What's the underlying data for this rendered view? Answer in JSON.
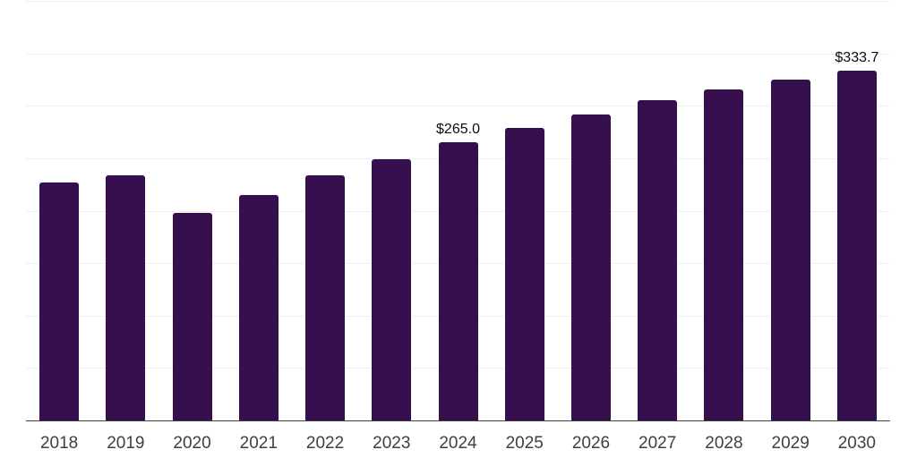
{
  "chart_data": {
    "type": "bar",
    "title": "",
    "xlabel": "",
    "ylabel": "",
    "categories": [
      "2018",
      "2019",
      "2020",
      "2021",
      "2022",
      "2023",
      "2024",
      "2025",
      "2026",
      "2027",
      "2028",
      "2029",
      "2030"
    ],
    "values": [
      227.2,
      233.6,
      197.7,
      214.8,
      234.1,
      248.9,
      265.0,
      278.9,
      292.0,
      305.2,
      315.7,
      325.2,
      333.7
    ],
    "data_labels": [
      {
        "index": 6,
        "text": "$265.0"
      },
      {
        "index": 12,
        "text": "$333.7"
      }
    ],
    "ylim": [
      0,
      400
    ],
    "grid_step": 50,
    "grid": true,
    "legend": false,
    "colors": {
      "bar": "#36104E",
      "gridline": "#efefef",
      "axis_line": "#3d3d3d",
      "tick_label": "#3f3f3f",
      "value_label": "#0c0c0c",
      "background": "#ffffff"
    }
  }
}
